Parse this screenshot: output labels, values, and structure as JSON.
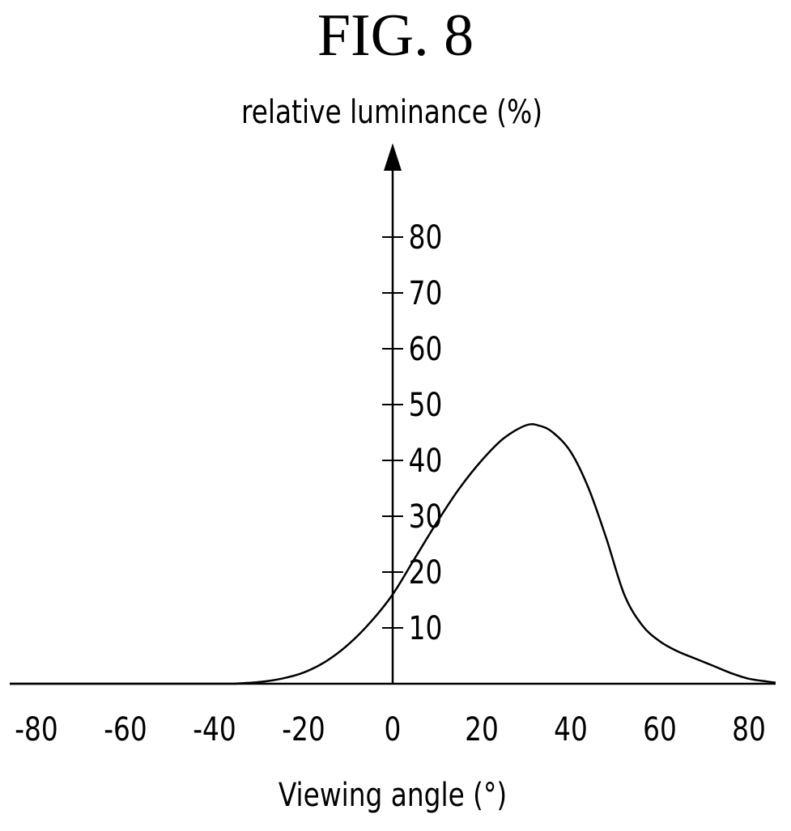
{
  "figure": {
    "title": "FIG. 8"
  },
  "chart_data": {
    "type": "line",
    "title": "FIG. 8",
    "xlabel": "Viewing angle (°)",
    "ylabel": "relative luminance (%)",
    "xlim": [
      -86,
      86
    ],
    "ylim": [
      0,
      90
    ],
    "x_ticks": [
      "-80",
      "-60",
      "-40",
      "-20",
      "0",
      "20",
      "40",
      "60",
      "80"
    ],
    "y_ticks": [
      "10",
      "20",
      "30",
      "40",
      "50",
      "60",
      "70",
      "80"
    ],
    "grid": false,
    "legend": "none",
    "series": [
      {
        "x": [
          -86,
          -40,
          -35,
          -30,
          -25,
          -20,
          -15,
          -10,
          -5,
          0,
          5,
          10,
          15,
          20,
          25,
          30,
          33,
          36,
          40,
          44,
          48,
          52,
          56,
          60,
          64,
          68,
          72,
          76,
          80,
          84,
          86
        ],
        "y": [
          0,
          0,
          0.05,
          0.3,
          0.9,
          2.0,
          4.0,
          7.0,
          11.0,
          16.0,
          22.5,
          29.0,
          35.0,
          40.0,
          44.0,
          46.3,
          46.2,
          45.0,
          41.5,
          35.0,
          26.0,
          16.0,
          10.5,
          7.6,
          5.8,
          4.5,
          3.2,
          1.9,
          0.9,
          0.4,
          0.2
        ]
      }
    ]
  }
}
